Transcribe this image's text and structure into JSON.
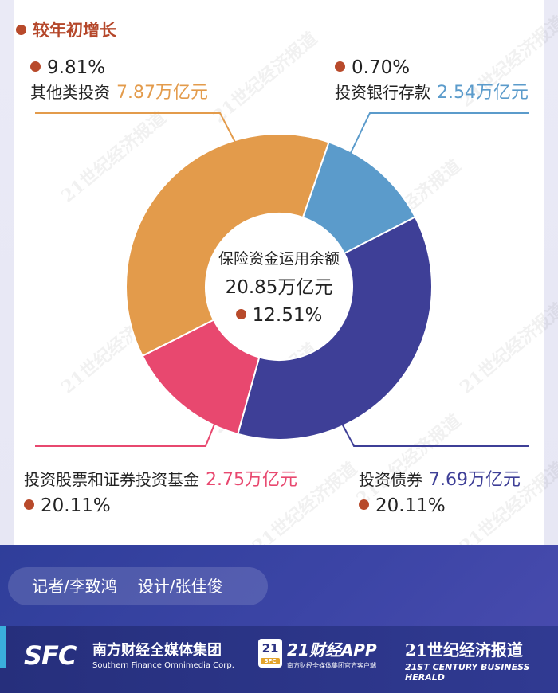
{
  "header": {
    "growth_legend": "较年初增长"
  },
  "center": {
    "title": "保险资金运用余额",
    "total": "20.85万亿元",
    "growth": "12.51%"
  },
  "labels": {
    "other": {
      "name": "其他类投资",
      "value": "7.87万亿元",
      "growth": "9.81%"
    },
    "deposit": {
      "name": "投资银行存款",
      "value": "2.54万亿元",
      "growth": "0.70%"
    },
    "stocks": {
      "name": "投资股票和证券投资基金",
      "value": "2.75万亿元",
      "growth": "20.11%"
    },
    "bonds": {
      "name": "投资债券",
      "value": "7.69万亿元",
      "growth": "20.11%"
    }
  },
  "chart_data": {
    "type": "pie",
    "donut": true,
    "title": "保险资金运用余额",
    "total": 20.85,
    "unit": "万亿元",
    "slices": [
      {
        "name": "投资银行存款",
        "value": 2.54,
        "growth_pct": 0.7,
        "color": "#5b9bcb"
      },
      {
        "name": "投资债券",
        "value": 7.69,
        "growth_pct": 20.11,
        "color": "#3e3f97"
      },
      {
        "name": "投资股票和证券投资基金",
        "value": 2.75,
        "growth_pct": 20.11,
        "color": "#e8486f"
      },
      {
        "name": "其他类投资",
        "value": 7.87,
        "growth_pct": 9.81,
        "color": "#e39b4b"
      }
    ]
  },
  "watermark": "21世纪经济报道",
  "footer": {
    "reporter": "记者/李致鸿",
    "designer": "设计/张佳俊",
    "sfc_mark": "SFC",
    "sfc_cn": "南方财经全媒体集团",
    "sfc_en": "Southern Finance Omnimedia Corp.",
    "app_badge": "21",
    "app_badge_sub": "SFC",
    "app_cn": "21财经APP",
    "app_en": "南方财经全媒体集团官方客户端",
    "herald_cn": "21世纪经济报道",
    "herald_en": "21ST CENTURY BUSINESS HERALD"
  },
  "colors": {
    "accent_red": "#b84a2b",
    "deposit": "#5b9bcb",
    "bonds": "#3e3f97",
    "stocks": "#e8486f",
    "other": "#e39b4b"
  }
}
